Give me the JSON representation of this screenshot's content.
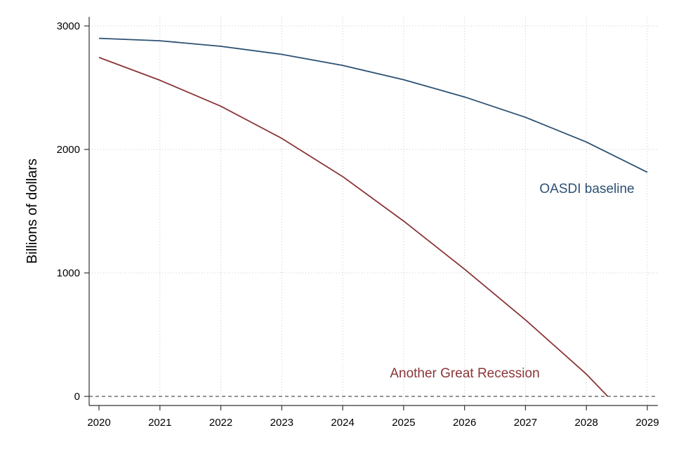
{
  "chart_data": {
    "type": "line",
    "title": "",
    "xlabel": "",
    "ylabel": "Billions of dollars",
    "x": [
      2020,
      2021,
      2022,
      2023,
      2024,
      2025,
      2026,
      2027,
      2028,
      2029
    ],
    "x_ticks": [
      "2020",
      "2021",
      "2022",
      "2023",
      "2024",
      "2025",
      "2026",
      "2027",
      "2028",
      "2029"
    ],
    "y_ticks": [
      "0",
      "1000",
      "2000",
      "3000"
    ],
    "xlim": [
      2020,
      2029
    ],
    "ylim": [
      0,
      3000
    ],
    "grid": true,
    "zero_reference_line": "dashed",
    "series": [
      {
        "name": "OASDI baseline",
        "color": "#2c5173",
        "x": [
          2020,
          2021,
          2022,
          2023,
          2024,
          2025,
          2026,
          2027,
          2028,
          2029
        ],
        "values": [
          2900,
          2880,
          2835,
          2770,
          2680,
          2565,
          2425,
          2260,
          2060,
          1815
        ]
      },
      {
        "name": "Another Great Recession",
        "color": "#8b3538",
        "x": [
          2020,
          2021,
          2022,
          2023,
          2024,
          2025,
          2026,
          2027,
          2028,
          2028.35
        ],
        "values": [
          2745,
          2560,
          2350,
          2090,
          1780,
          1420,
          1030,
          620,
          180,
          0
        ]
      }
    ]
  }
}
